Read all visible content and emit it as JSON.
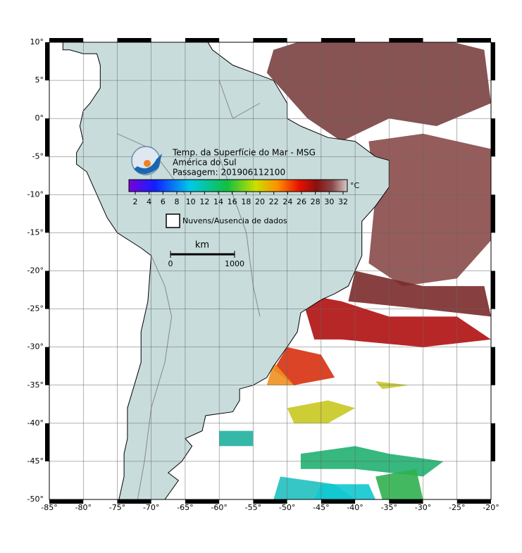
{
  "map": {
    "title_lines": [
      "Temp. da Superfície do Mar - MSG",
      "América do Sul",
      "Passagem: 201906112100"
    ],
    "colorbar": {
      "unit": "°C",
      "ticks": [
        2,
        4,
        6,
        8,
        10,
        12,
        14,
        16,
        18,
        20,
        22,
        24,
        26,
        28,
        30,
        32
      ]
    },
    "legend": "Nuvens/Ausencia de dados",
    "scale": {
      "unit": "km",
      "ticks": [
        0,
        1000
      ]
    },
    "xlim": [
      -85,
      -20
    ],
    "ylim": [
      -50,
      10
    ],
    "xticks": [
      {
        "value": -85,
        "label": "-85°"
      },
      {
        "value": -80,
        "label": "-80°"
      },
      {
        "value": -75,
        "label": "-75°"
      },
      {
        "value": -70,
        "label": "-70°"
      },
      {
        "value": -65,
        "label": "-65°"
      },
      {
        "value": -60,
        "label": "-60°"
      },
      {
        "value": -55,
        "label": "-55°"
      },
      {
        "value": -50,
        "label": "-50°"
      },
      {
        "value": -45,
        "label": "-45°"
      },
      {
        "value": -40,
        "label": "-40°"
      },
      {
        "value": -35,
        "label": "-35°"
      },
      {
        "value": -30,
        "label": "-30°"
      },
      {
        "value": -25,
        "label": "-25°"
      },
      {
        "value": -20,
        "label": "-20°"
      }
    ],
    "yticks": [
      {
        "value": 10,
        "label": "10°"
      },
      {
        "value": 5,
        "label": "5°"
      },
      {
        "value": 0,
        "label": "0°"
      },
      {
        "value": -5,
        "label": "-5°"
      },
      {
        "value": -10,
        "label": "-10°"
      },
      {
        "value": -15,
        "label": "-15°"
      },
      {
        "value": -20,
        "label": "-20°"
      },
      {
        "value": -25,
        "label": "-25°"
      },
      {
        "value": -30,
        "label": "-30°"
      },
      {
        "value": -35,
        "label": "-35°"
      },
      {
        "value": -40,
        "label": "-40°"
      },
      {
        "value": -45,
        "label": "-45°"
      },
      {
        "value": -50,
        "label": "-50°"
      }
    ]
  }
}
